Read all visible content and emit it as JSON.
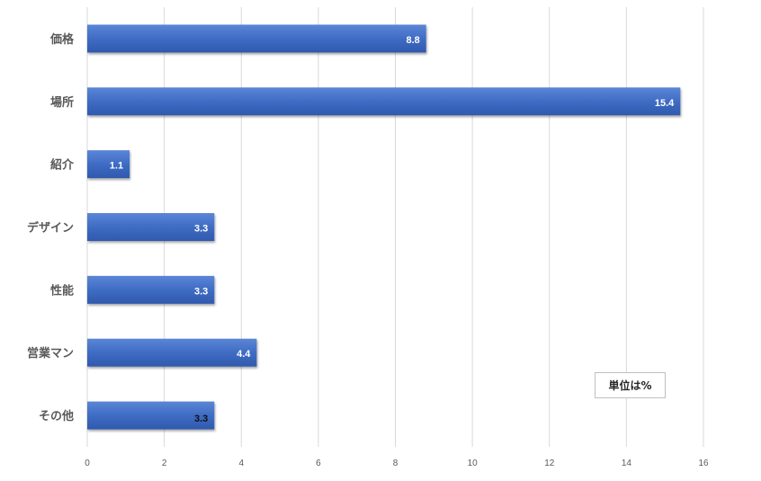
{
  "chart_data": {
    "type": "bar",
    "orientation": "horizontal",
    "categories": [
      "価格",
      "場所",
      "紹介",
      "デザイン",
      "性能",
      "営業マン",
      "その他"
    ],
    "values": [
      8.8,
      15.4,
      1.1,
      3.3,
      3.3,
      4.4,
      3.3
    ],
    "data_labels": [
      "8.8",
      "15.4",
      "1.1",
      "3.3",
      "3.3",
      "4.4",
      "3.3"
    ],
    "x_ticks": [
      "0",
      "2",
      "4",
      "6",
      "8",
      "10",
      "12",
      "14",
      "16"
    ],
    "xlim": [
      0,
      16
    ],
    "grid": true,
    "bar_color": "#4472C4",
    "unit_note": "単位は%"
  }
}
